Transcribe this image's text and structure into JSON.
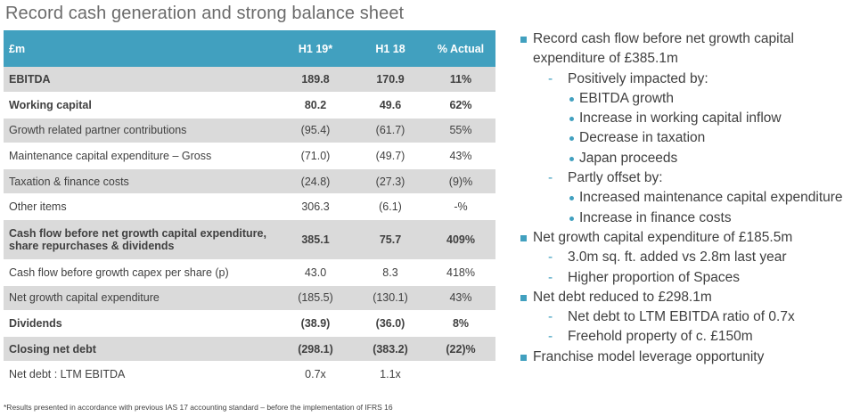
{
  "title": "Record cash generation and strong balance sheet",
  "table": {
    "headers": [
      "£m",
      "H1 19*",
      "H1 18",
      "% Actual"
    ],
    "rows": [
      {
        "label": "EBITDA",
        "h119": "189.8",
        "h118": "170.9",
        "pct": "11%",
        "style": "shade bold"
      },
      {
        "label": "Working capital",
        "h119": "80.2",
        "h118": "49.6",
        "pct": "62%",
        "style": "bold"
      },
      {
        "label": "Growth related partner contributions",
        "h119": "(95.4)",
        "h118": "(61.7)",
        "pct": "55%",
        "style": "shade"
      },
      {
        "label": "Maintenance capital expenditure – Gross",
        "h119": "(71.0)",
        "h118": "(49.7)",
        "pct": "43%",
        "style": ""
      },
      {
        "label": "Taxation & finance costs",
        "h119": "(24.8)",
        "h118": "(27.3)",
        "pct": "(9)%",
        "style": "shade"
      },
      {
        "label": "Other items",
        "h119": "306.3",
        "h118": "(6.1)",
        "pct": "-%",
        "style": ""
      },
      {
        "label": "Cash flow before net growth capital expenditure, share repurchases & dividends",
        "h119": "385.1",
        "h118": "75.7",
        "pct": "409%",
        "style": "shade bold tall"
      },
      {
        "label": "Cash flow before growth capex per share (p)",
        "h119": "43.0",
        "h118": "8.3",
        "pct": "418%",
        "style": ""
      },
      {
        "label": "Net growth capital expenditure",
        "h119": "(185.5)",
        "h118": "(130.1)",
        "pct": "43%",
        "style": "shade"
      },
      {
        "label": "Dividends",
        "h119": "(38.9)",
        "h118": "(36.0)",
        "pct": "8%",
        "style": "bold"
      },
      {
        "label": "Closing net debt",
        "h119": "(298.1)",
        "h118": "(383.2)",
        "pct": "(22)%",
        "style": "shade bold"
      },
      {
        "label": "Net debt : LTM EBITDA",
        "h119": "0.7x",
        "h118": "1.1x",
        "pct": "",
        "style": ""
      }
    ]
  },
  "footnote": "*Results presented in accordance with previous IAS 17 accounting standard – before the implementation of IFRS 16",
  "bullets": [
    {
      "level": 1,
      "text": "Record cash flow before net growth capital expenditure of £385.1m"
    },
    {
      "level": 2,
      "text": "Positively impacted by:"
    },
    {
      "level": 3,
      "text": "EBITDA growth"
    },
    {
      "level": 3,
      "text": "Increase in working capital inflow"
    },
    {
      "level": 3,
      "text": "Decrease in taxation"
    },
    {
      "level": 3,
      "text": "Japan proceeds"
    },
    {
      "level": 2,
      "text": "Partly offset by:"
    },
    {
      "level": 3,
      "text": "Increased maintenance capital expenditure"
    },
    {
      "level": 3,
      "text": "Increase in finance costs"
    },
    {
      "level": 1,
      "text": "Net growth capital expenditure of £185.5m"
    },
    {
      "level": 2,
      "text": "3.0m sq. ft. added vs 2.8m last year"
    },
    {
      "level": 2,
      "text": "Higher proportion of Spaces"
    },
    {
      "level": 1,
      "text": "Net debt reduced to £298.1m"
    },
    {
      "level": 2,
      "text": "Net debt to LTM EBITDA ratio of 0.7x"
    },
    {
      "level": 2,
      "text": "Freehold property of c. £150m"
    },
    {
      "level": 1,
      "text": "Franchise model leverage opportunity"
    }
  ],
  "colors": {
    "accent": "#41a0bf",
    "row_shade": "#dadada",
    "text": "#404040"
  }
}
